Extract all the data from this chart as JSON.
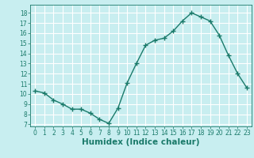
{
  "x": [
    0,
    1,
    2,
    3,
    4,
    5,
    6,
    7,
    8,
    9,
    10,
    11,
    12,
    13,
    14,
    15,
    16,
    17,
    18,
    19,
    20,
    21,
    22,
    23
  ],
  "y": [
    10.3,
    10.1,
    9.4,
    9.0,
    8.5,
    8.5,
    8.1,
    7.5,
    7.1,
    8.6,
    11.1,
    13.0,
    14.8,
    15.3,
    15.5,
    16.2,
    17.2,
    18.0,
    17.6,
    17.2,
    15.8,
    13.8,
    12.0,
    10.6
  ],
  "xlabel": "Humidex (Indice chaleur)",
  "xlim": [
    -0.5,
    23.5
  ],
  "ylim": [
    6.8,
    18.8
  ],
  "yticks": [
    7,
    8,
    9,
    10,
    11,
    12,
    13,
    14,
    15,
    16,
    17,
    18
  ],
  "xticks": [
    0,
    1,
    2,
    3,
    4,
    5,
    6,
    7,
    8,
    9,
    10,
    11,
    12,
    13,
    14,
    15,
    16,
    17,
    18,
    19,
    20,
    21,
    22,
    23
  ],
  "line_color": "#1a7a6a",
  "bg_color": "#c8eef0",
  "grid_color": "#ffffff",
  "tick_color": "#1a7a6a",
  "xlabel_color": "#1a7a6a",
  "tick_fontsize": 5.5,
  "xlabel_fontsize": 7.5
}
